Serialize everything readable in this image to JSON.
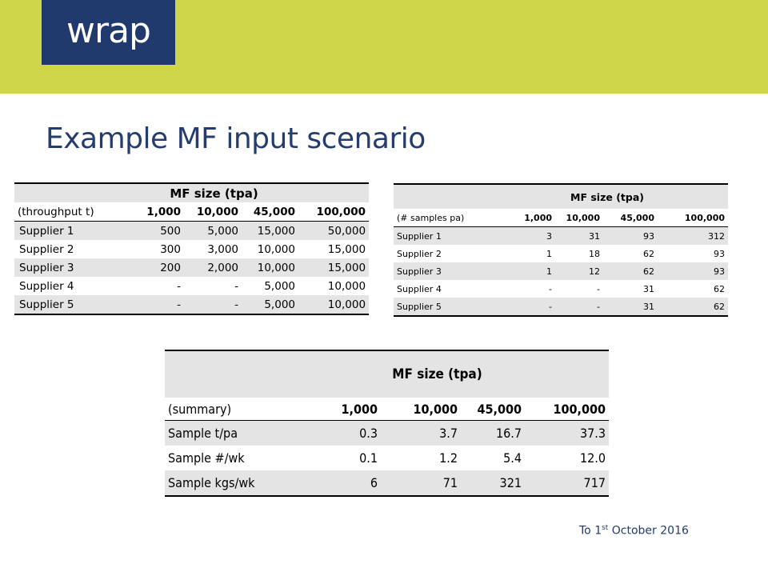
{
  "logo": "wrap",
  "title": "Example MF input scenario",
  "table1": {
    "header": "MF size (tpa)",
    "row_label_header": "(throughput  t)",
    "columns": [
      "1,000",
      "10,000",
      "45,000",
      "100,000"
    ],
    "rows": [
      {
        "label": "Supplier 1",
        "values": [
          "500",
          "5,000",
          "15,000",
          "50,000"
        ]
      },
      {
        "label": "Supplier 2",
        "values": [
          "300",
          "3,000",
          "10,000",
          "15,000"
        ]
      },
      {
        "label": "Supplier 3",
        "values": [
          "200",
          "2,000",
          "10,000",
          "15,000"
        ]
      },
      {
        "label": "Supplier 4",
        "values": [
          "-",
          "-",
          "5,000",
          "10,000"
        ]
      },
      {
        "label": "Supplier 5",
        "values": [
          "-",
          "-",
          "5,000",
          "10,000"
        ]
      }
    ]
  },
  "table2": {
    "header": "MF size (tpa)",
    "row_label_header": "(# samples pa)",
    "columns": [
      "1,000",
      "10,000",
      "45,000",
      "100,000"
    ],
    "rows": [
      {
        "label": "Supplier 1",
        "values": [
          "3",
          "31",
          "93",
          "312"
        ]
      },
      {
        "label": "Supplier 2",
        "values": [
          "1",
          "18",
          "62",
          "93"
        ]
      },
      {
        "label": "Supplier 3",
        "values": [
          "1",
          "12",
          "62",
          "93"
        ]
      },
      {
        "label": "Supplier 4",
        "values": [
          "-",
          "-",
          "31",
          "62"
        ]
      },
      {
        "label": "Supplier 5",
        "values": [
          "-",
          "-",
          "31",
          "62"
        ]
      }
    ]
  },
  "table3": {
    "header": "MF size (tpa)",
    "row_label_header": "(summary)",
    "columns": [
      "1,000",
      "10,000",
      "45,000",
      "100,000"
    ],
    "rows": [
      {
        "label": "Sample t/pa",
        "values": [
          "0.3",
          "3.7",
          "16.7",
          "37.3"
        ]
      },
      {
        "label": "Sample #/wk",
        "values": [
          "0.1",
          "1.2",
          "5.4",
          "12.0"
        ]
      },
      {
        "label": "Sample kgs/wk",
        "values": [
          "6",
          "71",
          "321",
          "717"
        ]
      }
    ]
  },
  "footnote": {
    "prefix": "To 1",
    "superscript": "st",
    "suffix": " October 2016"
  },
  "colors": {
    "banner": "#d0d64a",
    "logo_bg": "#213a6d",
    "title": "#243d6e",
    "row_shade": "#e4e4e4"
  }
}
